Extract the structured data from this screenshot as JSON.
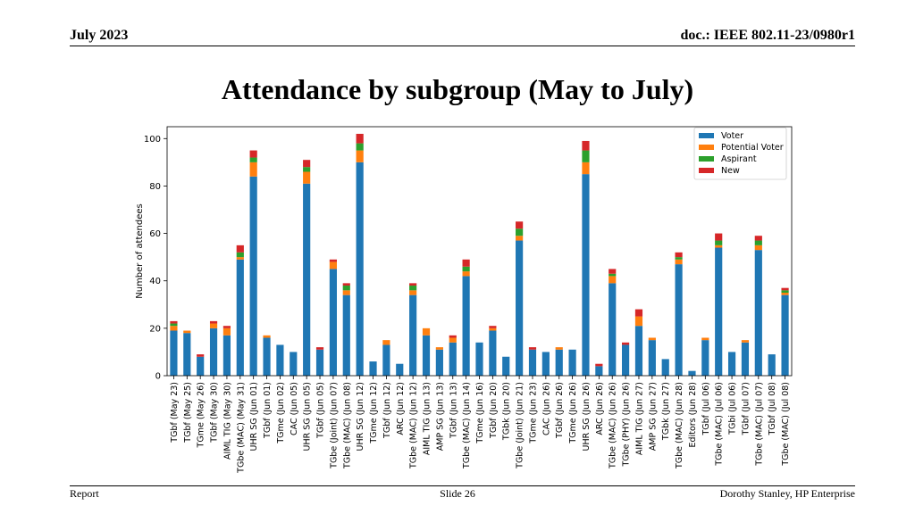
{
  "header": {
    "date": "July 2023",
    "doc": "doc.: IEEE 802.11-23/0980r1"
  },
  "slide_title": "Attendance by subgroup (May to July)",
  "footer": {
    "left": "Report",
    "center": "Slide 26",
    "right": "Dorothy Stanley, HP Enterprise"
  },
  "chart_data": {
    "type": "bar",
    "stacked": true,
    "title": "",
    "xlabel": "",
    "ylabel": "Number of attendees",
    "ylim": [
      0,
      105
    ],
    "yticks": [
      0,
      20,
      40,
      60,
      80,
      100
    ],
    "grid": false,
    "legend_position": "top-right",
    "categories": [
      "TGbf (May 23)",
      "TGbf (May 25)",
      "TGme (May 26)",
      "TGbf (May 30)",
      "AIML TIG (May 30)",
      "TGbe (MAC) (May 31)",
      "UHR SG (Jun 01)",
      "TGbf (Jun 01)",
      "TGme (Jun 02)",
      "CAC (Jun 05)",
      "UHR SG (Jun 05)",
      "TGbf (Jun 05)",
      "TGbe (Joint) (Jun 07)",
      "TGbe (MAC) (Jun 08)",
      "UHR SG (Jun 12)",
      "TGme (Jun 12)",
      "TGbf (Jun 12)",
      "ARC (Jun 12)",
      "TGbe (MAC) (Jun 12)",
      "AIML TIG (Jun 13)",
      "AMP SG (Jun 13)",
      "TGbf (Jun 13)",
      "TGbe (MAC) (Jun 14)",
      "TGme (Jun 16)",
      "TGbf (Jun 20)",
      "TGbk (Jun 20)",
      "TGbe (Joint) (Jun 21)",
      "TGme (Jun 23)",
      "CAC (Jun 26)",
      "TGbf (Jun 26)",
      "TGme (Jun 26)",
      "UHR SG (Jun 26)",
      "ARC (Jun 26)",
      "TGbe (MAC) (Jun 26)",
      "TGbe (PHY) (Jun 26)",
      "AIML TIG (Jun 27)",
      "AMP SG (Jun 27)",
      "TGbk (Jun 27)",
      "TGbe (MAC) (Jun 28)",
      "Editors (Jun 28)",
      "TGbf (Jul 06)",
      "TGbe (MAC) (Jul 06)",
      "TGbi (Jul 06)",
      "TGbf (Jul 07)",
      "TGbe (MAC) (Jul 07)",
      "TGbf (Jul 08)",
      "TGbe (MAC) (Jul 08)"
    ],
    "series": [
      {
        "name": "Voter",
        "color": "#1f77b4",
        "values": [
          19,
          18,
          8,
          20,
          17,
          49,
          84,
          16,
          13,
          10,
          81,
          11,
          45,
          34,
          90,
          6,
          13,
          5,
          34,
          17,
          11,
          14,
          42,
          14,
          19,
          8,
          57,
          11,
          10,
          11,
          11,
          85,
          4,
          39,
          13,
          21,
          15,
          7,
          47,
          2,
          15,
          54,
          10,
          14,
          53,
          9,
          34
        ]
      },
      {
        "name": "Potential Voter",
        "color": "#ff7f0e",
        "values": [
          2,
          1,
          0,
          2,
          3,
          1,
          6,
          1,
          0,
          0,
          5,
          0,
          3,
          2,
          5,
          0,
          2,
          0,
          2,
          3,
          1,
          2,
          2,
          0,
          1,
          0,
          2,
          0,
          0,
          1,
          0,
          5,
          0,
          3,
          0,
          4,
          1,
          0,
          2,
          0,
          1,
          1,
          0,
          1,
          2,
          0,
          1
        ]
      },
      {
        "name": "Aspirant",
        "color": "#2ca02c",
        "values": [
          1,
          0,
          0,
          0,
          0,
          2,
          2,
          0,
          0,
          0,
          2,
          0,
          0,
          2,
          3,
          0,
          0,
          0,
          2,
          0,
          0,
          0,
          2,
          0,
          0,
          0,
          3,
          0,
          0,
          0,
          0,
          5,
          0,
          1,
          0,
          0,
          0,
          0,
          1,
          0,
          0,
          2,
          0,
          0,
          2,
          0,
          1
        ]
      },
      {
        "name": "New",
        "color": "#d62728",
        "values": [
          1,
          0,
          1,
          1,
          1,
          3,
          3,
          0,
          0,
          0,
          3,
          1,
          1,
          1,
          4,
          0,
          0,
          0,
          1,
          0,
          0,
          1,
          3,
          0,
          1,
          0,
          3,
          1,
          0,
          0,
          0,
          4,
          1,
          2,
          1,
          3,
          0,
          0,
          2,
          0,
          0,
          3,
          0,
          0,
          2,
          0,
          1
        ]
      }
    ]
  }
}
